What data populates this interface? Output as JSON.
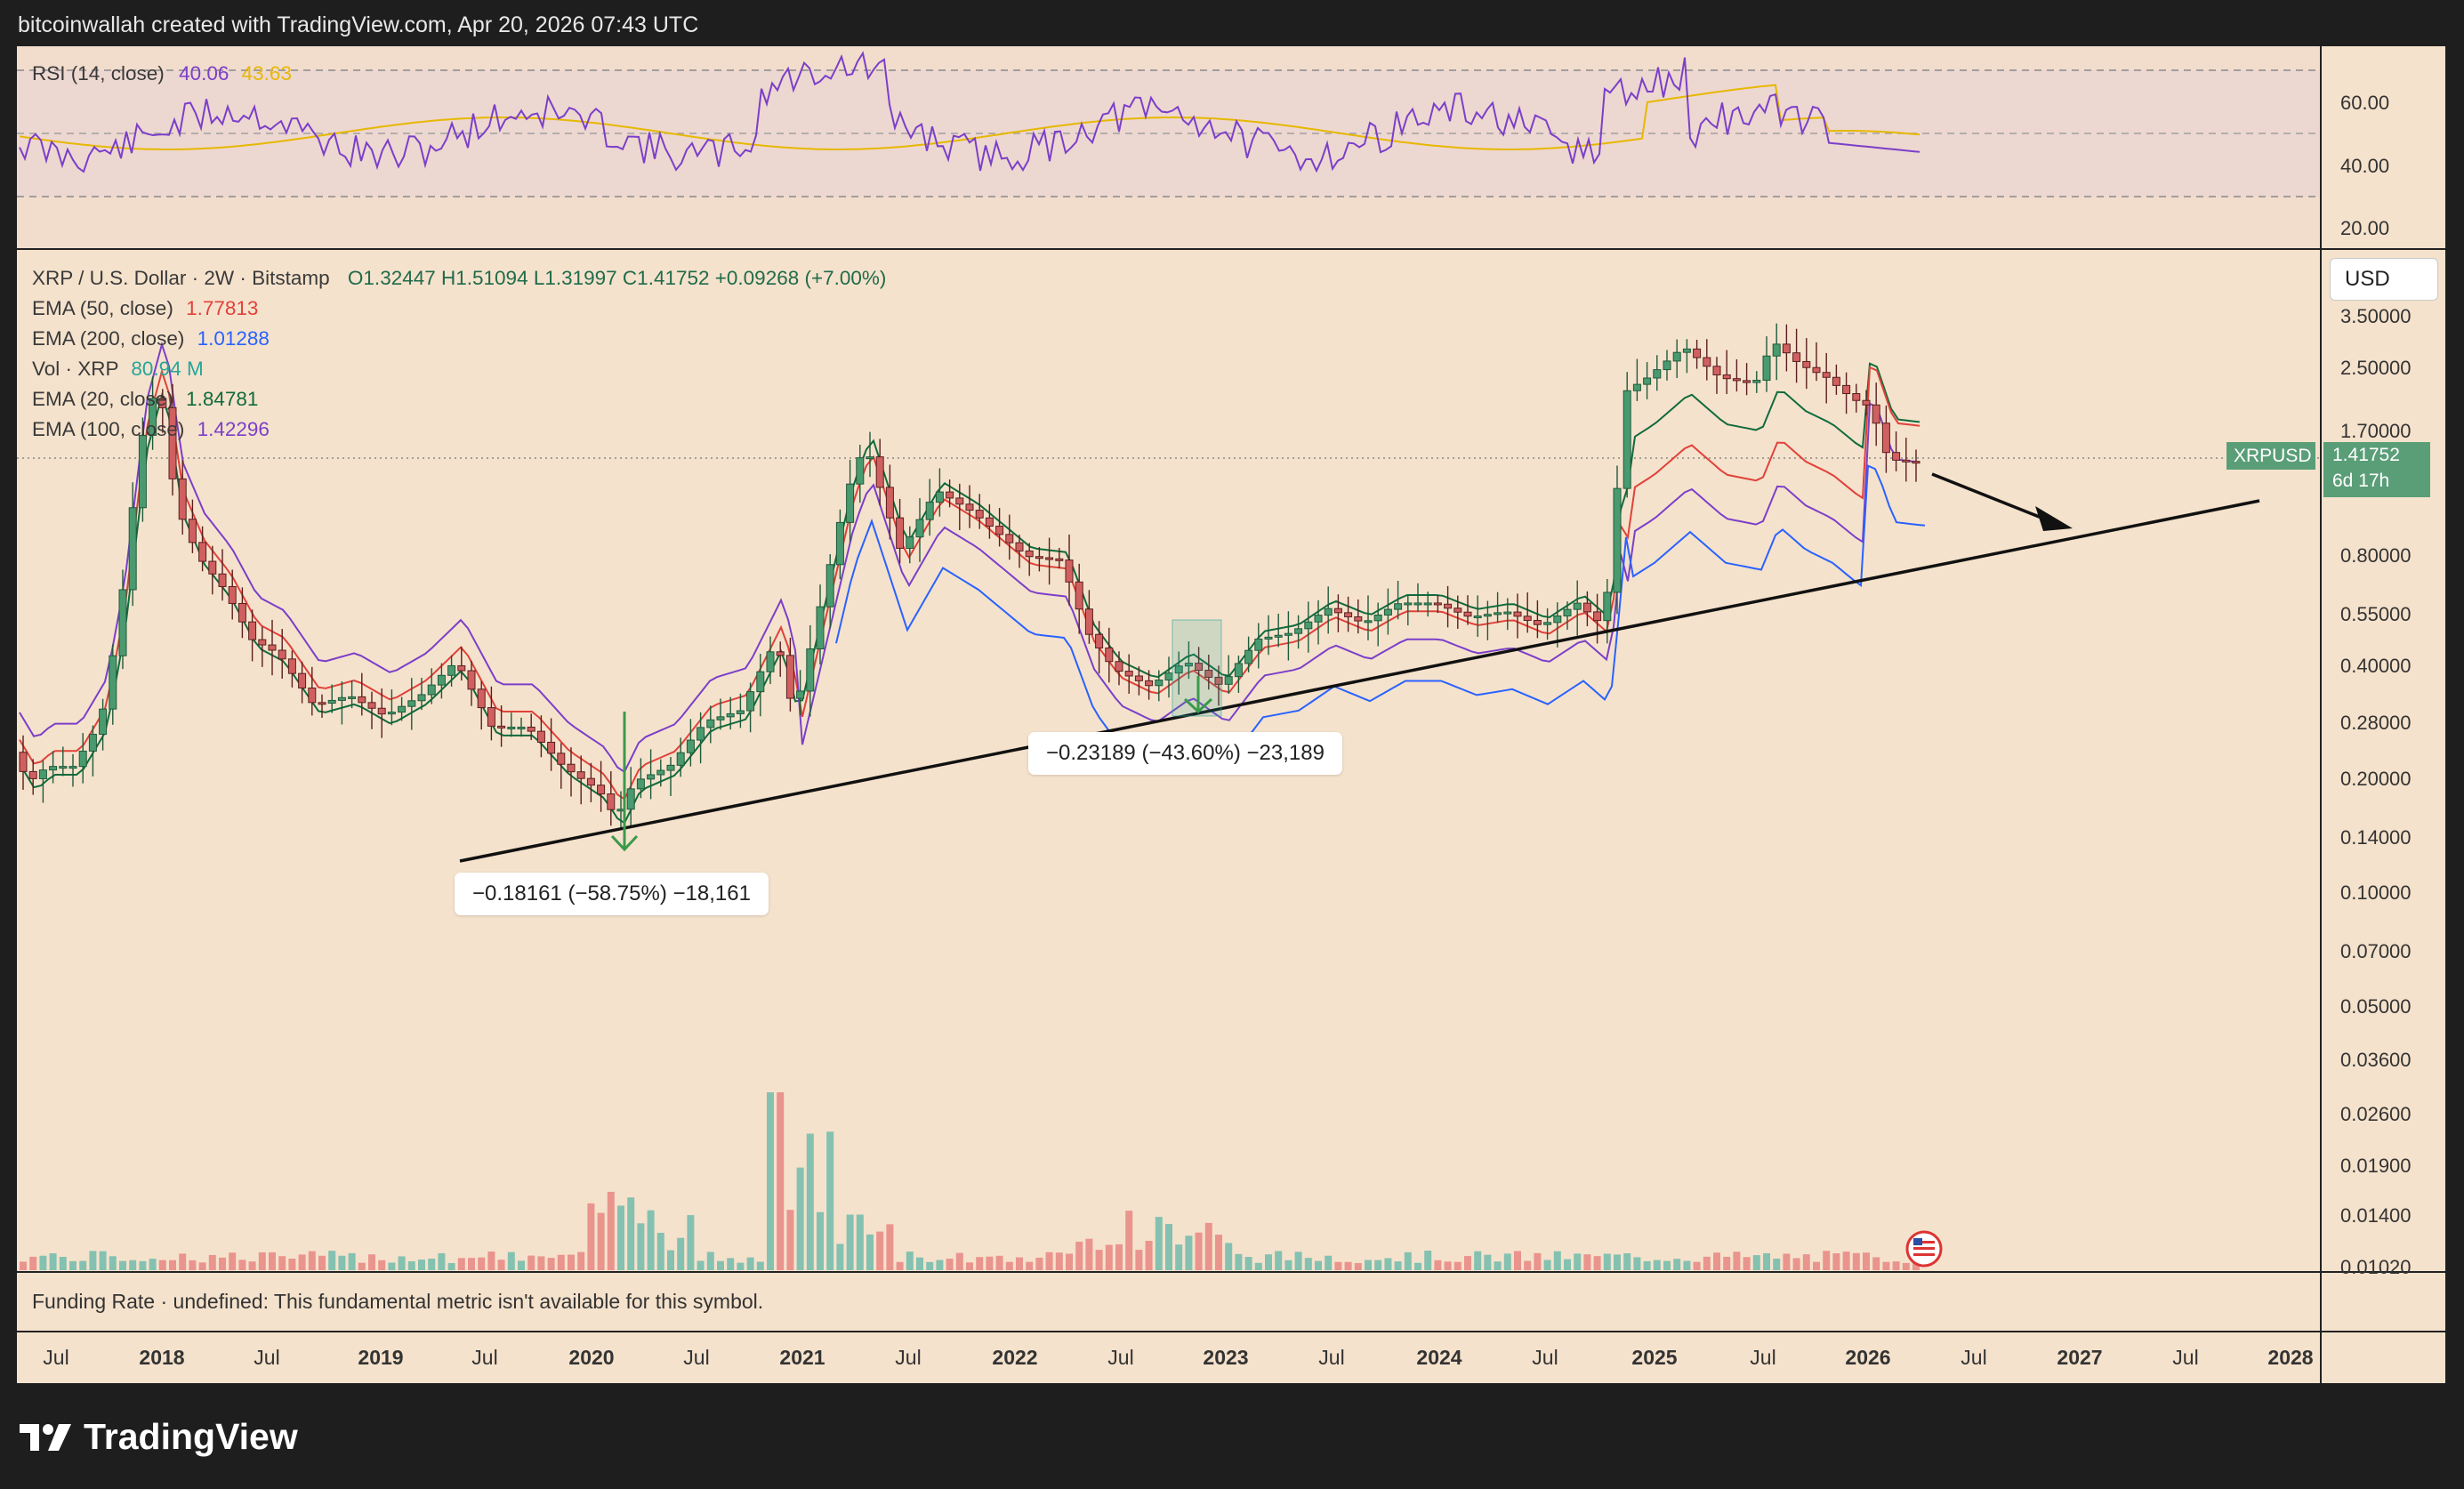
{
  "header": {
    "credit": "bitcoinwallah created with TradingView.com, Apr 20, 2026 07:43 UTC"
  },
  "rsi": {
    "label": "RSI (14, close)",
    "value1": "40.06",
    "value2": "43.63"
  },
  "main_legend": {
    "title": "XRP / U.S. Dollar · 2W · Bitstamp",
    "ohlc": "O1.32447  H1.51094  L1.31997  C1.41752  +0.09268 (+7.00%)",
    "ema50": {
      "label": "EMA (50, close)",
      "value": "1.77813",
      "color": "#e0423a"
    },
    "ema200": {
      "label": "EMA (200, close)",
      "value": "1.01288",
      "color": "#2962ff"
    },
    "vol": {
      "label": "Vol · XRP",
      "value": "80.94 M",
      "color": "#26a69a"
    },
    "ema20": {
      "label": "EMA (20, close)",
      "value": "1.84781",
      "color": "#106b3c"
    },
    "ema100": {
      "label": "EMA (100, close)",
      "value": "1.42296",
      "color": "#7b3fc9"
    }
  },
  "currency_button": "USD",
  "price_tag": {
    "symbol": "XRPUSD",
    "price": "1.41752",
    "countdown": "6d 17h"
  },
  "annotations": {
    "drop_2020": "−0.18161 (−58.75%) −18,161",
    "drop_2022": "−0.23189 (−43.60%) −23,189"
  },
  "funding_rate": "Funding Rate · undefined: This fundamental metric isn't available for this symbol.",
  "brand": "TradingView",
  "colors": {
    "up": "#26a69a",
    "down": "#e57373",
    "background": "#f5e2cc"
  },
  "chart_data": [
    {
      "type": "line",
      "title": "RSI (14, close)",
      "y_ticks": [
        "60.00",
        "40.00",
        "20.00"
      ],
      "bands": [
        30,
        50,
        70
      ],
      "latest": 40.06,
      "signal": 43.63
    },
    {
      "type": "candlestick",
      "title": "XRP / U.S. Dollar · 2W · Bitstamp",
      "scale": "log",
      "y_ticks": [
        "3.50000",
        "2.50000",
        "1.70000",
        "0.80000",
        "0.55000",
        "0.40000",
        "0.28000",
        "0.20000",
        "0.14000",
        "0.10000",
        "0.07000",
        "0.05000",
        "0.03600",
        "0.02600",
        "0.01900",
        "0.01400",
        "0.01020"
      ],
      "x_ticks": [
        "Jul",
        "2018",
        "Jul",
        "2019",
        "Jul",
        "2020",
        "Jul",
        "2021",
        "Jul",
        "2022",
        "Jul",
        "2023",
        "Jul",
        "2024",
        "Jul",
        "2025",
        "Jul",
        "2026",
        "Jul",
        "2027",
        "Jul",
        "2028"
      ],
      "last": {
        "open": 1.32447,
        "high": 1.51094,
        "low": 1.31997,
        "close": 1.41752,
        "change": 0.09268,
        "change_pct": 7.0
      },
      "ema": {
        "ema20": 1.84781,
        "ema50": 1.77813,
        "ema100": 1.42296,
        "ema200": 1.01288
      },
      "volume_latest": "80.94 M",
      "notes": [
        "Rising support trendline from 2020 low through 2022 low to 2025 breakout",
        "Arrow pointing down toward trendline into 2027"
      ]
    }
  ]
}
